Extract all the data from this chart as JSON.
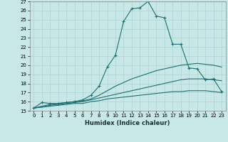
{
  "xlabel": "Humidex (Indice chaleur)",
  "background_color": "#c8e8e8",
  "line_color": "#1a7070",
  "xlim": [
    -0.5,
    23.5
  ],
  "ylim": [
    15,
    27
  ],
  "xticks": [
    0,
    1,
    2,
    3,
    4,
    5,
    6,
    7,
    8,
    9,
    10,
    11,
    12,
    13,
    14,
    15,
    16,
    17,
    18,
    19,
    20,
    21,
    22,
    23
  ],
  "yticks": [
    15,
    16,
    17,
    18,
    19,
    20,
    21,
    22,
    23,
    24,
    25,
    26,
    27
  ],
  "lines": [
    {
      "x": [
        0,
        1,
        2,
        3,
        4,
        5,
        6,
        7,
        8,
        9,
        10,
        11,
        12,
        13,
        14,
        15,
        16,
        17,
        18,
        19,
        20,
        21,
        22,
        23
      ],
      "y": [
        15.3,
        15.9,
        15.8,
        15.8,
        15.9,
        16.0,
        16.2,
        16.7,
        17.7,
        19.8,
        21.1,
        24.8,
        26.2,
        26.3,
        27.0,
        25.4,
        25.2,
        22.3,
        22.3,
        19.7,
        19.6,
        18.4,
        18.5,
        17.1
      ],
      "marker": true
    },
    {
      "x": [
        0,
        1,
        2,
        3,
        4,
        5,
        6,
        7,
        8,
        9,
        10,
        11,
        12,
        13,
        14,
        15,
        16,
        17,
        18,
        19,
        20,
        21,
        22,
        23
      ],
      "y": [
        15.3,
        15.5,
        15.7,
        15.8,
        15.9,
        16.0,
        16.1,
        16.3,
        16.7,
        17.2,
        17.7,
        18.1,
        18.5,
        18.8,
        19.1,
        19.4,
        19.6,
        19.8,
        20.0,
        20.1,
        20.2,
        20.1,
        20.0,
        19.8
      ],
      "marker": false
    },
    {
      "x": [
        0,
        1,
        2,
        3,
        4,
        5,
        6,
        7,
        8,
        9,
        10,
        11,
        12,
        13,
        14,
        15,
        16,
        17,
        18,
        19,
        20,
        21,
        22,
        23
      ],
      "y": [
        15.3,
        15.4,
        15.6,
        15.7,
        15.8,
        15.9,
        16.0,
        16.2,
        16.4,
        16.6,
        16.8,
        17.0,
        17.2,
        17.4,
        17.6,
        17.8,
        18.0,
        18.2,
        18.4,
        18.5,
        18.5,
        18.5,
        18.4,
        18.3
      ],
      "marker": false
    },
    {
      "x": [
        0,
        1,
        2,
        3,
        4,
        5,
        6,
        7,
        8,
        9,
        10,
        11,
        12,
        13,
        14,
        15,
        16,
        17,
        18,
        19,
        20,
        21,
        22,
        23
      ],
      "y": [
        15.3,
        15.4,
        15.5,
        15.6,
        15.7,
        15.8,
        15.8,
        16.0,
        16.1,
        16.3,
        16.4,
        16.5,
        16.6,
        16.7,
        16.8,
        16.9,
        17.0,
        17.1,
        17.1,
        17.2,
        17.2,
        17.2,
        17.1,
        17.0
      ],
      "marker": false
    }
  ]
}
